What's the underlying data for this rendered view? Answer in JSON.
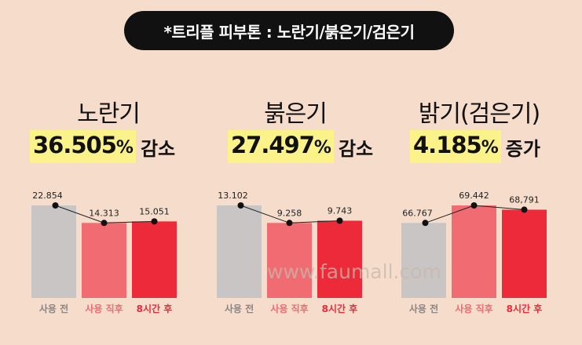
{
  "title": "*트리플 피부톤 : 노란기/붉은기/검은기",
  "watermark": "www.faumall.com",
  "colors": {
    "before": "#c9c5c5",
    "right_after": "#f06b72",
    "after8h": "#ed2a3a",
    "highlight": "#fbf28a"
  },
  "panels": [
    {
      "heading": "노란기",
      "stat_value": "36.505",
      "stat_unit": "%",
      "stat_word": "감소"
    },
    {
      "heading": "붉은기",
      "stat_value": "27.497",
      "stat_unit": "%",
      "stat_word": "감소"
    },
    {
      "heading": "밝기(검은기)",
      "stat_value": "4.185",
      "stat_unit": "%",
      "stat_word": "증가"
    }
  ],
  "chart_data": [
    {
      "type": "bar",
      "categories": [
        "사용 전",
        "사용 직후",
        "8시간 후"
      ],
      "values": [
        22.854,
        14.313,
        15.051
      ],
      "labels": [
        "22.854",
        "14.313",
        "15.051"
      ],
      "overlay": "line"
    },
    {
      "type": "bar",
      "categories": [
        "사용 전",
        "사용 직후",
        "8시간 후"
      ],
      "values": [
        13.102,
        9.258,
        9.743
      ],
      "labels": [
        "13.102",
        "9.258",
        "9.743"
      ],
      "overlay": "line"
    },
    {
      "type": "bar",
      "categories": [
        "사용 전",
        "사용 직후",
        "8시간 후"
      ],
      "values": [
        66.767,
        69.442,
        68.791
      ],
      "labels": [
        "66.767",
        "69.442",
        "68,791"
      ],
      "overlay": "line"
    }
  ]
}
